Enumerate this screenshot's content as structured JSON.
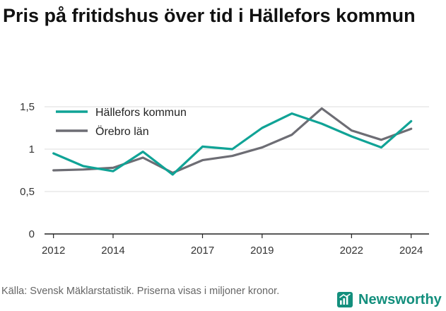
{
  "title": "Pris på fritidshus över tid i Hällefors kommun",
  "source": "Källa: Svensk Mäklarstatistik. Priserna visas i miljoner kronor.",
  "brand": {
    "name": "Newsworthy",
    "icon": "newsworthy-logo-icon"
  },
  "colors": {
    "teal": "#10a396",
    "gray": "#6d6d74",
    "grid": "#dcdcdc",
    "axis": "#222222"
  },
  "chart_data": {
    "type": "line",
    "x": [
      2012,
      2013,
      2014,
      2015,
      2016,
      2017,
      2018,
      2019,
      2020,
      2021,
      2022,
      2023,
      2024
    ],
    "x_tick_values": [
      2012,
      2014,
      2017,
      2019,
      2022,
      2024
    ],
    "x_tick_labels": [
      "2012",
      "2014",
      "2017",
      "2019",
      "2022",
      "2024"
    ],
    "xlim": [
      2011.7,
      2024.6
    ],
    "y_tick_values": [
      0,
      0.5,
      1,
      1.5
    ],
    "y_tick_labels": [
      "0",
      "0,5",
      "1",
      "1,5"
    ],
    "ylim": [
      0,
      1.5
    ],
    "grid": true,
    "legend_position": "top-left",
    "series": [
      {
        "name": "Hällefors kommun",
        "color": "#10a396",
        "values": [
          0.95,
          0.8,
          0.74,
          0.97,
          0.7,
          1.03,
          1.0,
          1.25,
          1.42,
          1.3,
          1.15,
          1.02,
          1.33
        ]
      },
      {
        "name": "Örebro län",
        "color": "#6d6d74",
        "values": [
          0.75,
          0.76,
          0.78,
          0.9,
          0.72,
          0.87,
          0.92,
          1.02,
          1.17,
          1.48,
          1.22,
          1.11,
          1.24
        ]
      }
    ]
  }
}
